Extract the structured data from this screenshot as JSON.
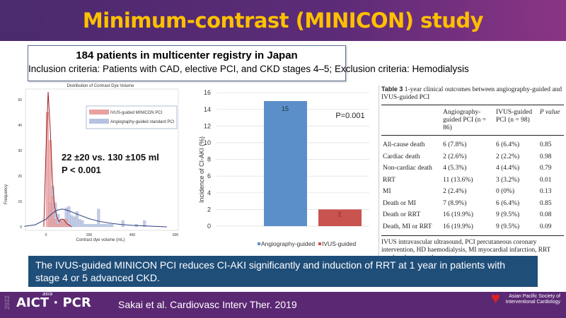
{
  "title": "Minimum-contrast (MINICON) study",
  "info": {
    "line1": "184  patients  in  multicenter registry  in  Japan",
    "line2": "Inclusion  criteria:  Patients with CAD, elective PCI, and CKD stages 4–5; Exclusion criteria: Hemodialysis"
  },
  "chart_data": [
    {
      "type": "bar",
      "title": "Distribution of Contrast Dye Volume",
      "xlabel": "Contrast dye volume (mL)",
      "ylabel": "Frequency",
      "xlim": [
        -100,
        600
      ],
      "ylim": [
        0,
        53
      ],
      "xticks": [
        "0",
        "200",
        "400",
        "600"
      ],
      "yticks": [
        "0",
        "10",
        "20",
        "30",
        "40",
        "50"
      ],
      "bin_width": 12.5,
      "legend_position": "top-right",
      "annotation": {
        "line1": "22  ±20  vs. 130 ±105 ml",
        "line2": "P < 0.001"
      },
      "series": [
        {
          "name": "IVUS-guided MINICON PCI",
          "color": "#d9534f",
          "bin_starts": [
            0,
            12.5,
            25,
            37.5,
            50,
            62.5,
            75,
            87.5,
            100
          ],
          "values": [
            45,
            34,
            12,
            3,
            1,
            2,
            3,
            3,
            1
          ],
          "density_x": [
            -10,
            0,
            10,
            20,
            30,
            40,
            50,
            60,
            70,
            80,
            90,
            100,
            110,
            120
          ],
          "density_y": [
            0,
            30,
            53,
            38,
            18,
            8,
            4,
            2,
            3,
            3,
            2,
            1,
            0.5,
            0
          ]
        },
        {
          "name": "Angiography-guided standard PCI",
          "color": "#8ea3cf",
          "bin_starts": [
            12.5,
            25,
            37.5,
            50,
            62.5,
            75,
            87.5,
            100,
            112.5,
            125,
            137.5,
            150,
            162.5,
            175,
            187.5,
            200,
            212.5,
            225,
            237.5,
            250,
            262.5,
            275,
            287.5,
            300,
            312.5,
            325,
            337.5,
            350,
            362.5,
            375,
            387.5,
            400,
            412.5,
            425,
            437.5,
            450
          ],
          "values": [
            9.5,
            16,
            9.5,
            5,
            3,
            2,
            7.5,
            8,
            4.5,
            4,
            6,
            3,
            2.5,
            1,
            1,
            1,
            1,
            1,
            7,
            1,
            1,
            1,
            1,
            1,
            0,
            0,
            0,
            2.5,
            0,
            0,
            0,
            0,
            1,
            0,
            0,
            2.5
          ],
          "density_x": [
            -100,
            -50,
            0,
            25,
            50,
            75,
            100,
            150,
            200,
            250,
            300,
            350,
            400,
            450,
            500,
            560
          ],
          "density_y": [
            0.2,
            0.8,
            3,
            5,
            6.5,
            7,
            6.5,
            4.8,
            3.2,
            2.1,
            1.4,
            0.9,
            0.6,
            0.4,
            0.2,
            0
          ]
        }
      ]
    },
    {
      "type": "bar",
      "ylabel": "Incidence of CI-AKI (%)",
      "ylim": [
        0,
        16
      ],
      "yticks": [
        "0",
        "2",
        "4",
        "6",
        "8",
        "10",
        "12",
        "14",
        "16"
      ],
      "categories": [
        "Angiography-guided",
        "IVUS-guided"
      ],
      "values": [
        15,
        2
      ],
      "data_labels": [
        "15",
        "2"
      ],
      "colors": [
        "#5b8fc9",
        "#c9534f"
      ],
      "annotation": "P=0.001",
      "legend_position": "bottom"
    }
  ],
  "table": {
    "caption_label": "Table 3",
    "caption": " 1-year clinical outcomes between angiography-guided and IVUS-guided PCI",
    "headers": [
      "",
      "Angiography-guided PCI (n = 86)",
      "IVUS-guided PCI (n = 98)",
      "P value"
    ],
    "rows": [
      [
        "All-cause death",
        "6 (7.8%)",
        "6 (6.4%)",
        "0.85"
      ],
      [
        "Cardiac death",
        "2 (2.6%)",
        "2 (2.2%)",
        "0.98"
      ],
      [
        "Non-cardiac death",
        "4 (5.3%)",
        "4 (4.4%)",
        "0.79"
      ],
      [
        "RRT",
        "11 (13.6%)",
        "3 (3.2%)",
        "0.01"
      ],
      [
        "MI",
        "2 (2.4%)",
        "0 (0%)",
        "0.13"
      ],
      [
        "Death or MI",
        "7 (8.9%)",
        "6 (6.4%)",
        "0.85"
      ],
      [
        "Death or RRT",
        "16 (19.9%)",
        "9 (9.5%)",
        "0.08"
      ],
      [
        "Death, MI or RRT",
        "16 (19.9%)",
        "9 (9.5%)",
        "0.09"
      ]
    ],
    "note": "IVUS intravascular ultrasound, PCI percutaneous coronary intervention, HD haemodialysis, MI myocardial infarction, RRT renal replacement therapy"
  },
  "conclusion": "The IVUS-guided MINICON PCI reduces CI-AKI  significantly and induction of RRT at 1 year in patients with stage 4 or 5 advanced CKD.",
  "footer": {
    "year": "2022",
    "logo": "AICT · PCR",
    "logo_small": "asia",
    "citation": "Sakai  et  al. Cardiovasc Interv Ther. 2019",
    "society": "Asian Pacific Society of Interventional Cardiology"
  }
}
